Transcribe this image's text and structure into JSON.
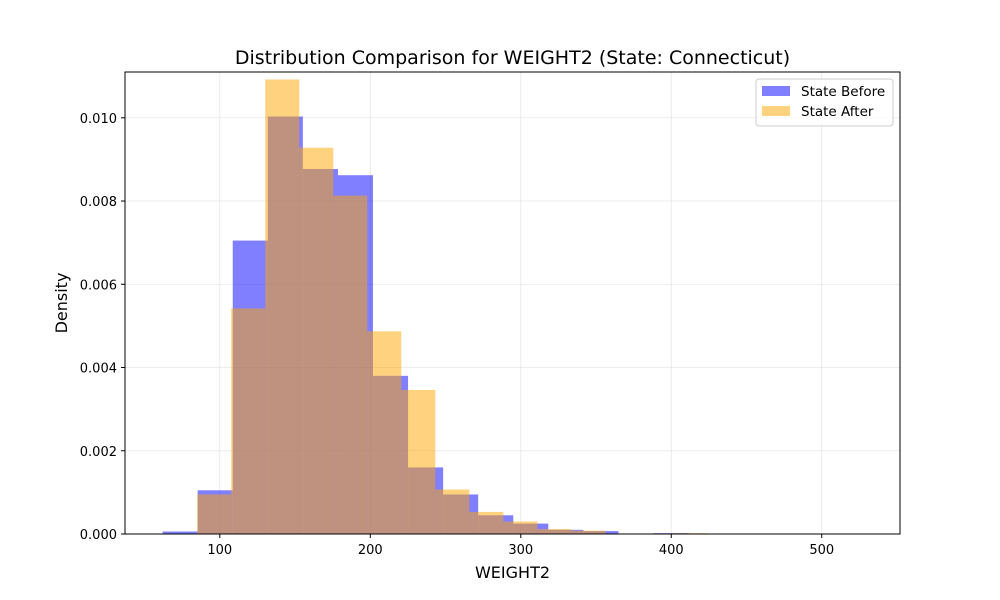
{
  "chart_data": {
    "type": "bar",
    "title": "Distribution Comparison for WEIGHT2 (State: Connecticut)",
    "xlabel": "WEIGHT2",
    "ylabel": "Density",
    "xlim": [
      37,
      552
    ],
    "ylim": [
      0,
      0.0111
    ],
    "x_ticks": [
      100,
      200,
      300,
      400,
      500
    ],
    "x_tick_labels": [
      "100",
      "200",
      "300",
      "400",
      "500"
    ],
    "y_ticks": [
      0,
      0.002,
      0.004,
      0.006,
      0.008,
      0.01
    ],
    "y_tick_labels": [
      "0.000",
      "0.002",
      "0.004",
      "0.006",
      "0.008",
      "0.010"
    ],
    "grid": true,
    "legend_position": "top-right",
    "series": [
      {
        "name": "State Before",
        "color": "#0000ff",
        "opacity": 0.5,
        "bin_edges": [
          62,
          85.3,
          108.6,
          131.9,
          155.2,
          178.5,
          201.8,
          225.1,
          248.4,
          271.7,
          295,
          318.3,
          341.6,
          364.9,
          388.2,
          411.5,
          434.8,
          458.1,
          481.4,
          504.7,
          528
        ],
        "values": [
          6e-05,
          0.00105,
          0.00705,
          0.01003,
          0.00877,
          0.00862,
          0.0038,
          0.0016,
          0.00095,
          0.00045,
          0.00025,
          0.0001,
          7e-05,
          0.0,
          2e-05,
          0.0,
          0.0,
          0.0,
          0.0,
          1e-05
        ]
      },
      {
        "name": "State After",
        "color": "#ffa500",
        "opacity": 0.5,
        "bin_edges": [
          85,
          107.6,
          130.2,
          152.8,
          175.4,
          198,
          220.6,
          243.2,
          265.8,
          288.4,
          311,
          333.6,
          356.2,
          378.8,
          401.4,
          424
        ],
        "values": [
          0.00095,
          0.00542,
          0.01092,
          0.00928,
          0.00813,
          0.00487,
          0.00346,
          0.00107,
          0.00053,
          0.0003,
          0.00012,
          8e-05,
          1e-05,
          0.0,
          2e-05
        ]
      }
    ]
  }
}
